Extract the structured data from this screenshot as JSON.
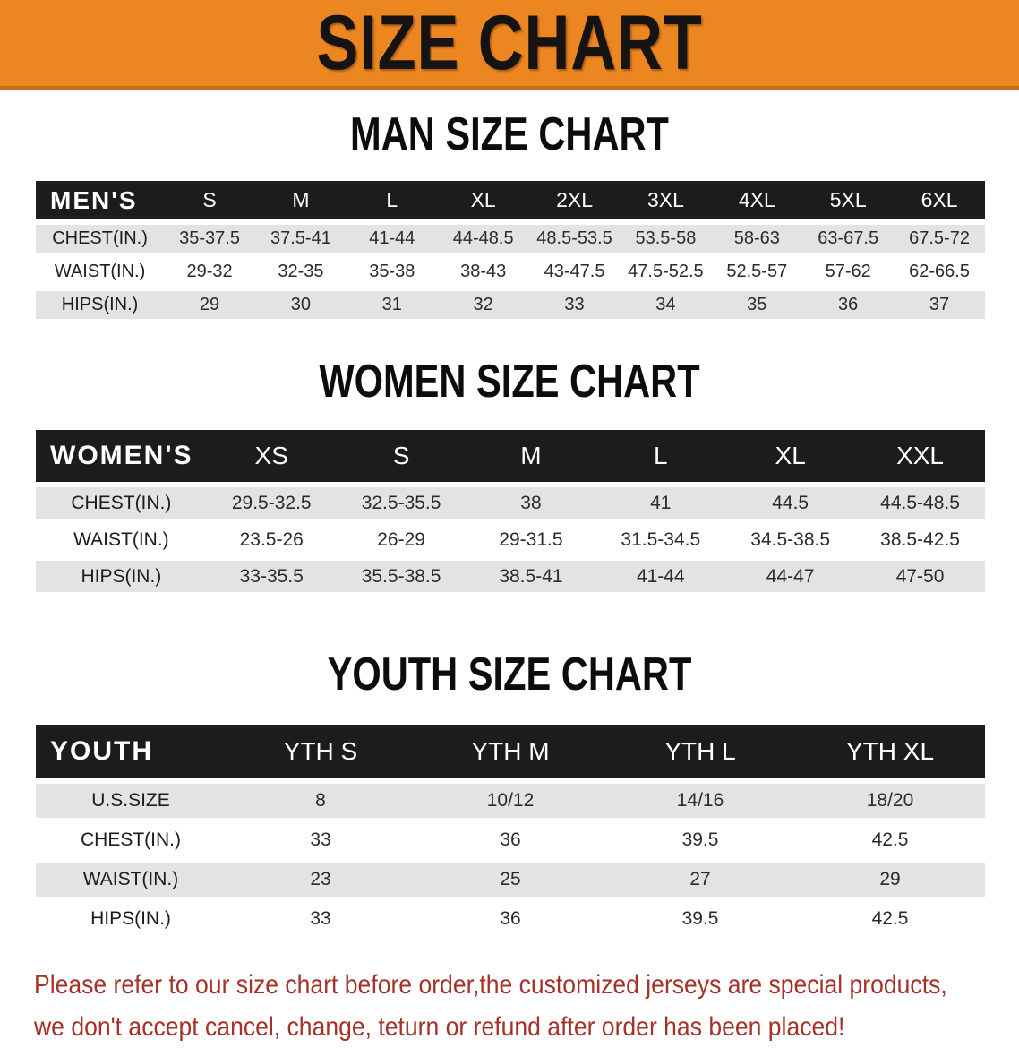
{
  "banner": {
    "title": "SIZE CHART",
    "bg_color": "#ec8621",
    "edge_color": "#c96f15"
  },
  "colors": {
    "header_bar": "#1c1c1c",
    "row_gray": "#e3e3e5",
    "footnote_red": "#a5322a"
  },
  "sections": [
    {
      "title": "MAN SIZE CHART",
      "header_label": "MEN'S",
      "columns": [
        "S",
        "M",
        "L",
        "XL",
        "2XL",
        "3XL",
        "4XL",
        "5XL",
        "6XL"
      ],
      "rows": [
        {
          "label": "CHEST(IN.)",
          "values": [
            "35-37.5",
            "37.5-41",
            "41-44",
            "44-48.5",
            "48.5-53.5",
            "53.5-58",
            "58-63",
            "63-67.5",
            "67.5-72"
          ]
        },
        {
          "label": "WAIST(IN.)",
          "values": [
            "29-32",
            "32-35",
            "35-38",
            "38-43",
            "43-47.5",
            "47.5-52.5",
            "52.5-57",
            "57-62",
            "62-66.5"
          ]
        },
        {
          "label": "HIPS(IN.)",
          "values": [
            "29",
            "30",
            "31",
            "32",
            "33",
            "34",
            "35",
            "36",
            "37"
          ]
        }
      ]
    },
    {
      "title": "WOMEN SIZE CHART",
      "header_label": "WOMEN'S",
      "columns": [
        "XS",
        "S",
        "M",
        "L",
        "XL",
        "XXL"
      ],
      "rows": [
        {
          "label": "CHEST(IN.)",
          "values": [
            "29.5-32.5",
            "32.5-35.5",
            "38",
            "41",
            "44.5",
            "44.5-48.5"
          ]
        },
        {
          "label": "WAIST(IN.)",
          "values": [
            "23.5-26",
            "26-29",
            "29-31.5",
            "31.5-34.5",
            "34.5-38.5",
            "38.5-42.5"
          ]
        },
        {
          "label": "HIPS(IN.)",
          "values": [
            "33-35.5",
            "35.5-38.5",
            "38.5-41",
            "41-44",
            "44-47",
            "47-50"
          ]
        }
      ]
    },
    {
      "title": "YOUTH SIZE CHART",
      "header_label": "YOUTH",
      "columns": [
        "YTH S",
        "YTH M",
        "YTH L",
        "YTH XL"
      ],
      "rows": [
        {
          "label": "U.S.SIZE",
          "values": [
            "8",
            "10/12",
            "14/16",
            "18/20"
          ]
        },
        {
          "label": "CHEST(IN.)",
          "values": [
            "33",
            "36",
            "39.5",
            "42.5"
          ]
        },
        {
          "label": "WAIST(IN.)",
          "values": [
            "23",
            "25",
            "27",
            "29"
          ]
        },
        {
          "label": "HIPS(IN.)",
          "values": [
            "33",
            "36",
            "39.5",
            "42.5"
          ]
        }
      ]
    }
  ],
  "footnote": {
    "line1": "Please refer to our size chart before order,the customized jerseys are special products,",
    "line2": "we don't accept cancel, change, teturn or refund after order has been placed!"
  }
}
